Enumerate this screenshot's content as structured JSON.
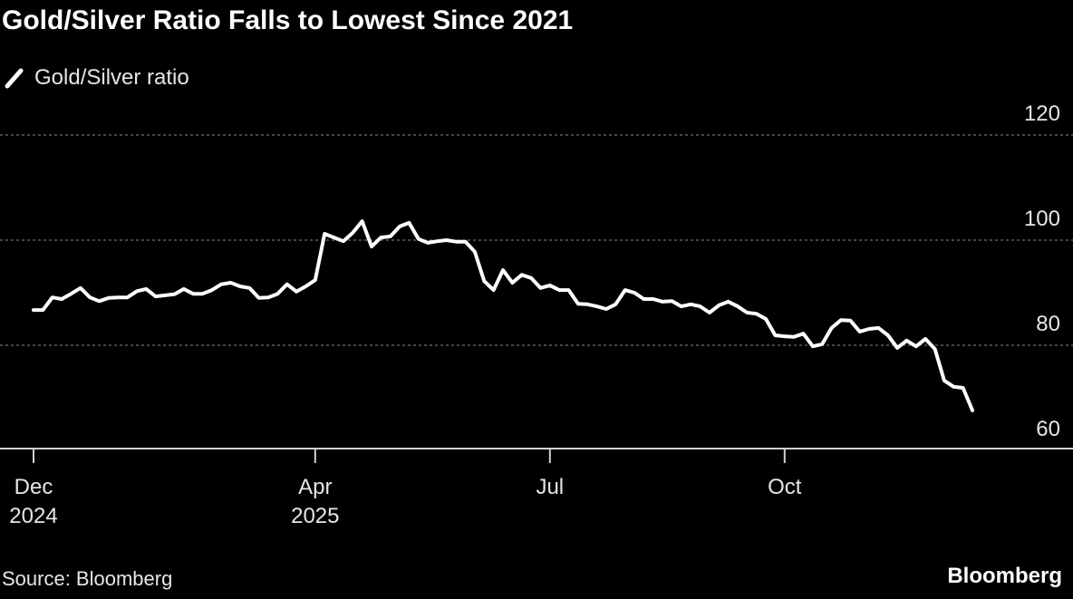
{
  "chart_data": {
    "type": "line",
    "title": "Gold/Silver Ratio Falls to Lowest Since 2021",
    "source": "Source: Bloomberg",
    "logo": "Bloomberg",
    "categories": [
      "Dec 2024",
      null,
      null,
      null,
      null,
      null,
      null,
      null,
      null,
      null,
      null,
      null,
      null,
      null,
      null,
      null,
      null,
      null,
      null,
      null,
      null,
      null,
      null,
      null,
      null,
      null,
      null,
      null,
      null,
      null,
      "Apr 2025",
      null,
      null,
      null,
      null,
      null,
      null,
      null,
      null,
      null,
      null,
      null,
      null,
      null,
      null,
      null,
      null,
      null,
      null,
      null,
      null,
      null,
      null,
      null,
      null,
      "Jul",
      null,
      null,
      null,
      null,
      null,
      null,
      null,
      null,
      null,
      null,
      null,
      null,
      null,
      null,
      null,
      null,
      null,
      null,
      null,
      null,
      null,
      null,
      null,
      null,
      "Oct",
      null,
      null,
      null,
      null,
      null,
      null,
      null,
      null,
      null,
      null,
      null,
      null,
      null,
      null,
      null,
      null,
      null,
      null,
      null,
      null
    ],
    "series": [
      {
        "name": "Gold/Silver ratio",
        "color": "#ffffff",
        "values": [
          86.7,
          86.7,
          89.1,
          88.8,
          89.8,
          90.9,
          89.1,
          88.4,
          89.0,
          89.1,
          89.1,
          90.3,
          90.7,
          89.3,
          89.5,
          89.7,
          90.7,
          89.8,
          89.8,
          90.5,
          91.6,
          91.9,
          91.2,
          90.9,
          89.0,
          89.1,
          89.8,
          91.6,
          90.2,
          91.2,
          92.4,
          101.2,
          100.5,
          99.8,
          101.4,
          103.6,
          98.8,
          100.5,
          100.7,
          102.6,
          103.3,
          100.2,
          99.5,
          99.8,
          100.0,
          99.7,
          99.7,
          97.8,
          92.2,
          90.5,
          94.3,
          91.9,
          93.4,
          92.8,
          90.9,
          91.4,
          90.5,
          90.5,
          87.9,
          87.8,
          87.4,
          86.9,
          87.8,
          90.5,
          90.0,
          88.8,
          88.8,
          88.3,
          88.4,
          87.4,
          87.8,
          87.4,
          86.2,
          87.6,
          88.3,
          87.4,
          86.2,
          86.0,
          85.0,
          81.9,
          81.7,
          81.6,
          82.2,
          79.8,
          80.2,
          83.3,
          84.8,
          84.7,
          82.6,
          83.1,
          83.3,
          81.9,
          79.5,
          80.9,
          79.8,
          81.2,
          79.3,
          73.3,
          72.1,
          71.9,
          67.6
        ]
      }
    ],
    "ylim": [
      60,
      120
    ],
    "yticks": [
      60,
      80,
      100,
      120
    ],
    "grid": true
  }
}
